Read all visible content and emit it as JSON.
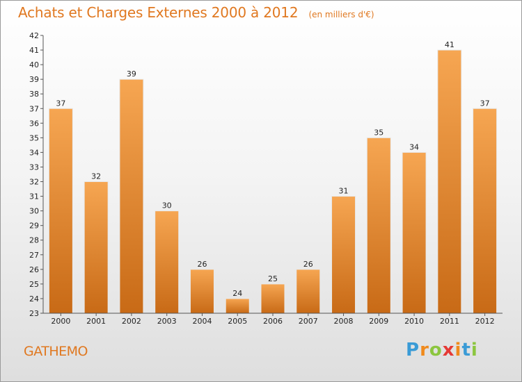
{
  "title": "Achats et Charges Externes 2000 à 2012",
  "subtitle": "(en milliers d'€)",
  "city": "GATHEMO",
  "brand": {
    "text": "Proxiti",
    "letters": [
      "P",
      "r",
      "o",
      "x",
      "i",
      "t",
      "i"
    ],
    "colors": [
      "#3a9bd6",
      "#f08a1c",
      "#8cc63f",
      "#e53935",
      "#f08a1c",
      "#3a9bd6",
      "#8cc63f"
    ]
  },
  "colors": {
    "title": "#e07820",
    "bar_light": "#f6a652",
    "bar_dark": "#c86a16",
    "axis": "#555555"
  },
  "chart_data": {
    "type": "bar",
    "title": "Achats et Charges Externes 2000 à 2012",
    "subtitle": "(en milliers d'€)",
    "xlabel": "",
    "ylabel": "",
    "categories": [
      "2000",
      "2001",
      "2002",
      "2003",
      "2004",
      "2005",
      "2006",
      "2007",
      "2008",
      "2009",
      "2010",
      "2011",
      "2012"
    ],
    "values": [
      37,
      32,
      39,
      30,
      26,
      24,
      25,
      26,
      31,
      35,
      34,
      41,
      37
    ],
    "ylim": [
      23,
      42
    ],
    "yticks": [
      23,
      24,
      25,
      26,
      27,
      28,
      29,
      30,
      31,
      32,
      33,
      34,
      35,
      36,
      37,
      38,
      39,
      40,
      41,
      42
    ],
    "grid": false,
    "legend": "none"
  }
}
